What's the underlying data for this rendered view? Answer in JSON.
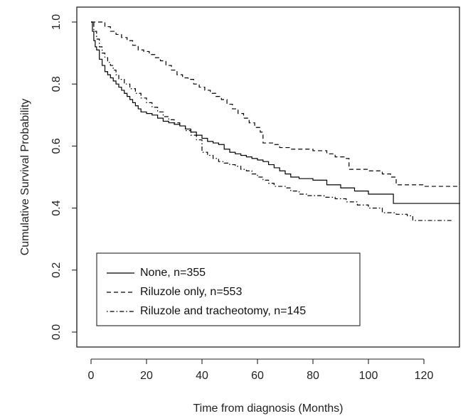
{
  "chart_data": {
    "type": "line",
    "title": "",
    "xlabel": "Time from diagnosis (Months)",
    "ylabel": "Cumulative Survival Probability",
    "xlim": [
      0,
      133
    ],
    "ylim": [
      0.0,
      1.0
    ],
    "x_ticks": [
      0,
      20,
      40,
      60,
      80,
      100,
      120
    ],
    "x_tick_labels": [
      "0",
      "20",
      "40",
      "60",
      "80",
      "100",
      "120"
    ],
    "y_ticks": [
      0.0,
      0.2,
      0.4,
      0.6,
      0.8,
      1.0
    ],
    "y_tick_labels": [
      "0.0",
      "0.2",
      "0.4",
      "0.6",
      "0.8",
      "1.0"
    ],
    "grid": false,
    "legend_position": "bottom-left",
    "series": [
      {
        "name": "None, n=355",
        "line_style": "solid",
        "color": "#000000",
        "points": [
          [
            0,
            1.0
          ],
          [
            0.5,
            0.97
          ],
          [
            1,
            0.94
          ],
          [
            1.5,
            0.92
          ],
          [
            2,
            0.91
          ],
          [
            3,
            0.88
          ],
          [
            4,
            0.86
          ],
          [
            5,
            0.84
          ],
          [
            6,
            0.83
          ],
          [
            7,
            0.82
          ],
          [
            8,
            0.81
          ],
          [
            9,
            0.8
          ],
          [
            10,
            0.79
          ],
          [
            11,
            0.78
          ],
          [
            12,
            0.77
          ],
          [
            13,
            0.76
          ],
          [
            14,
            0.75
          ],
          [
            15,
            0.74
          ],
          [
            16,
            0.73
          ],
          [
            17,
            0.72
          ],
          [
            18,
            0.71
          ],
          [
            20,
            0.705
          ],
          [
            22,
            0.7
          ],
          [
            24,
            0.69
          ],
          [
            26,
            0.68
          ],
          [
            28,
            0.675
          ],
          [
            30,
            0.67
          ],
          [
            32,
            0.665
          ],
          [
            34,
            0.655
          ],
          [
            36,
            0.645
          ],
          [
            38,
            0.635
          ],
          [
            40,
            0.625
          ],
          [
            42,
            0.615
          ],
          [
            44,
            0.61
          ],
          [
            46,
            0.605
          ],
          [
            48,
            0.59
          ],
          [
            50,
            0.58
          ],
          [
            52,
            0.575
          ],
          [
            54,
            0.57
          ],
          [
            56,
            0.565
          ],
          [
            58,
            0.56
          ],
          [
            60,
            0.555
          ],
          [
            62,
            0.55
          ],
          [
            64,
            0.54
          ],
          [
            66,
            0.53
          ],
          [
            68,
            0.52
          ],
          [
            70,
            0.51
          ],
          [
            72,
            0.5
          ],
          [
            75,
            0.495
          ],
          [
            80,
            0.49
          ],
          [
            85,
            0.475
          ],
          [
            90,
            0.465
          ],
          [
            95,
            0.455
          ],
          [
            100,
            0.445
          ],
          [
            105,
            0.445
          ],
          [
            109,
            0.415
          ],
          [
            120,
            0.415
          ],
          [
            133,
            0.415
          ]
        ]
      },
      {
        "name": "Riluzole only, n=553",
        "line_style": "dashed",
        "color": "#000000",
        "points": [
          [
            0,
            1.0
          ],
          [
            4,
            1.0
          ],
          [
            5,
            0.985
          ],
          [
            7,
            0.97
          ],
          [
            9,
            0.96
          ],
          [
            11,
            0.95
          ],
          [
            13,
            0.94
          ],
          [
            15,
            0.925
          ],
          [
            17,
            0.91
          ],
          [
            19,
            0.905
          ],
          [
            21,
            0.895
          ],
          [
            23,
            0.885
          ],
          [
            25,
            0.875
          ],
          [
            27,
            0.86
          ],
          [
            29,
            0.845
          ],
          [
            31,
            0.83
          ],
          [
            33,
            0.82
          ],
          [
            35,
            0.815
          ],
          [
            37,
            0.8
          ],
          [
            39,
            0.79
          ],
          [
            41,
            0.78
          ],
          [
            43,
            0.77
          ],
          [
            45,
            0.76
          ],
          [
            47,
            0.75
          ],
          [
            49,
            0.735
          ],
          [
            51,
            0.72
          ],
          [
            53,
            0.705
          ],
          [
            55,
            0.69
          ],
          [
            57,
            0.675
          ],
          [
            59,
            0.66
          ],
          [
            61,
            0.645
          ],
          [
            62,
            0.61
          ],
          [
            66,
            0.605
          ],
          [
            68,
            0.595
          ],
          [
            72,
            0.59
          ],
          [
            80,
            0.585
          ],
          [
            85,
            0.575
          ],
          [
            88,
            0.565
          ],
          [
            92,
            0.56
          ],
          [
            93,
            0.525
          ],
          [
            100,
            0.52
          ],
          [
            105,
            0.51
          ],
          [
            108,
            0.5
          ],
          [
            110,
            0.475
          ],
          [
            120,
            0.47
          ],
          [
            133,
            0.47
          ]
        ]
      },
      {
        "name": "Riluzole and tracheotomy, n=145",
        "line_style": "dotdash",
        "color": "#000000",
        "points": [
          [
            0,
            1.0
          ],
          [
            1,
            0.97
          ],
          [
            2,
            0.945
          ],
          [
            3,
            0.92
          ],
          [
            4,
            0.9
          ],
          [
            5,
            0.885
          ],
          [
            6,
            0.87
          ],
          [
            7,
            0.86
          ],
          [
            8,
            0.845
          ],
          [
            9,
            0.83
          ],
          [
            10,
            0.815
          ],
          [
            12,
            0.8
          ],
          [
            14,
            0.785
          ],
          [
            16,
            0.77
          ],
          [
            18,
            0.755
          ],
          [
            20,
            0.74
          ],
          [
            22,
            0.725
          ],
          [
            24,
            0.71
          ],
          [
            26,
            0.695
          ],
          [
            28,
            0.685
          ],
          [
            30,
            0.675
          ],
          [
            32,
            0.665
          ],
          [
            34,
            0.65
          ],
          [
            36,
            0.635
          ],
          [
            38,
            0.62
          ],
          [
            40,
            0.58
          ],
          [
            42,
            0.57
          ],
          [
            44,
            0.56
          ],
          [
            46,
            0.55
          ],
          [
            48,
            0.545
          ],
          [
            50,
            0.54
          ],
          [
            52,
            0.535
          ],
          [
            54,
            0.525
          ],
          [
            56,
            0.52
          ],
          [
            58,
            0.51
          ],
          [
            60,
            0.5
          ],
          [
            62,
            0.49
          ],
          [
            64,
            0.48
          ],
          [
            66,
            0.47
          ],
          [
            70,
            0.465
          ],
          [
            72,
            0.455
          ],
          [
            75,
            0.445
          ],
          [
            78,
            0.44
          ],
          [
            84,
            0.435
          ],
          [
            88,
            0.43
          ],
          [
            92,
            0.42
          ],
          [
            96,
            0.41
          ],
          [
            100,
            0.4
          ],
          [
            105,
            0.385
          ],
          [
            110,
            0.38
          ],
          [
            114,
            0.375
          ],
          [
            116,
            0.36
          ],
          [
            120,
            0.36
          ],
          [
            130,
            0.36
          ]
        ]
      }
    ]
  }
}
